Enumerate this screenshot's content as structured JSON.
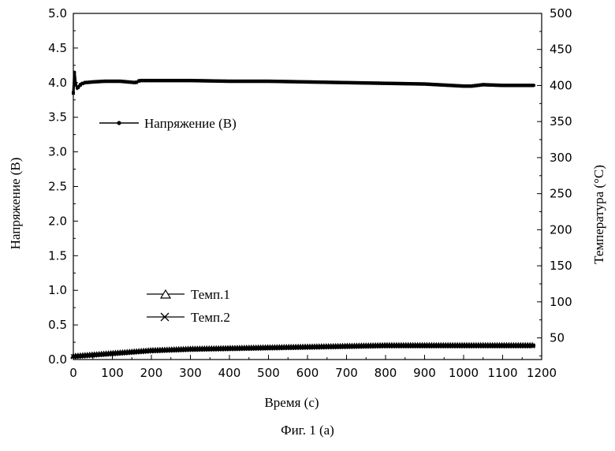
{
  "chart_data": {
    "type": "line",
    "xlabel": "Время (с)",
    "ylabel_left": "Напряжение (В)",
    "ylabel_right": "Температура (°С)",
    "xlim": [
      0,
      1200
    ],
    "ylim_left": [
      0,
      5.0
    ],
    "ylim_right": [
      20,
      500
    ],
    "x_ticks": [
      0,
      100,
      200,
      300,
      400,
      500,
      600,
      700,
      800,
      900,
      1000,
      1100,
      1200
    ],
    "y_left_ticks": [
      "0.0",
      "0.5",
      "1.0",
      "1.5",
      "2.0",
      "2.5",
      "3.0",
      "3.5",
      "4.0",
      "4.5",
      "5.0"
    ],
    "y_right_ticks": [
      50,
      100,
      150,
      200,
      250,
      300,
      350,
      400,
      450,
      500
    ],
    "grid": false,
    "series": [
      {
        "name": "Напряжение (В)",
        "axis": "left",
        "marker": "dot",
        "x": [
          0,
          3,
          6,
          10,
          15,
          20,
          30,
          50,
          80,
          120,
          160,
          170,
          200,
          300,
          400,
          500,
          600,
          700,
          800,
          900,
          1000,
          1020,
          1050,
          1100,
          1180
        ],
        "y": [
          3.85,
          4.15,
          3.98,
          3.92,
          3.95,
          3.98,
          4.0,
          4.01,
          4.02,
          4.02,
          4.0,
          4.03,
          4.03,
          4.03,
          4.02,
          4.02,
          4.01,
          4.0,
          3.99,
          3.98,
          3.95,
          3.95,
          3.97,
          3.96,
          3.96
        ]
      },
      {
        "name": "Темп.1",
        "axis": "right",
        "marker": "triangle",
        "x": [
          0,
          50,
          100,
          150,
          200,
          300,
          400,
          500,
          600,
          700,
          800,
          900,
          1000,
          1100,
          1180
        ],
        "y": [
          25,
          27,
          29,
          31,
          33,
          35,
          36,
          37,
          38,
          39,
          40,
          40,
          40,
          40,
          40
        ]
      },
      {
        "name": "Темп.2",
        "axis": "right",
        "marker": "cross",
        "x": [
          0,
          50,
          100,
          150,
          200,
          300,
          400,
          500,
          600,
          700,
          800,
          900,
          1000,
          1100,
          1180
        ],
        "y": [
          24,
          26,
          28,
          30,
          32,
          34,
          35,
          36,
          37,
          38,
          39,
          39,
          39,
          39,
          39
        ]
      }
    ],
    "legend_voltage": "Напряжение (В)",
    "legend_t1": "Темп.1",
    "legend_t2": "Темп.2"
  },
  "figure_caption": "Фиг. 1 (а)"
}
